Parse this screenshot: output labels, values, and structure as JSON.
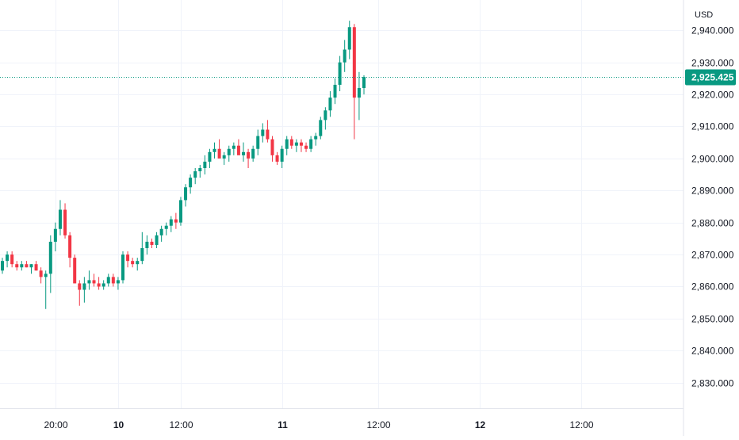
{
  "chart_data": {
    "type": "candlestick",
    "currency": "USD",
    "colors": {
      "up": "#089981",
      "down": "#f23645",
      "grid": "#f0f3fa",
      "last_price": "#089981"
    },
    "ylim": [
      2822,
      2947
    ],
    "y_ticks": [
      {
        "value": 2940,
        "label": "2,940.000"
      },
      {
        "value": 2930,
        "label": "2,930.000"
      },
      {
        "value": 2920,
        "label": "2,920.000"
      },
      {
        "value": 2910,
        "label": "2,910.000"
      },
      {
        "value": 2900,
        "label": "2,900.000"
      },
      {
        "value": 2890,
        "label": "2,890.000"
      },
      {
        "value": 2880,
        "label": "2,880.000"
      },
      {
        "value": 2870,
        "label": "2,870.000"
      },
      {
        "value": 2860,
        "label": "2,860.000"
      },
      {
        "value": 2850,
        "label": "2,850.000"
      },
      {
        "value": 2840,
        "label": "2,840.000"
      },
      {
        "value": 2830,
        "label": "2,830.000"
      }
    ],
    "x_ticks": [
      {
        "bar": 11,
        "label": "20:00",
        "bold": false
      },
      {
        "bar": 24,
        "label": "10",
        "bold": true
      },
      {
        "bar": 37,
        "label": "12:00",
        "bold": false
      },
      {
        "bar": 58,
        "label": "11",
        "bold": true
      },
      {
        "bar": 78,
        "label": "12:00",
        "bold": false
      },
      {
        "bar": 99,
        "label": "12",
        "bold": true
      },
      {
        "bar": 120,
        "label": "12:00",
        "bold": false
      }
    ],
    "last_price": {
      "value": 2925.425,
      "label": "2,925.425"
    },
    "candles": [
      [
        2865,
        2869,
        2864,
        2868
      ],
      [
        2868,
        2871,
        2866,
        2870
      ],
      [
        2870,
        2871,
        2866,
        2867
      ],
      [
        2867,
        2868,
        2865,
        2866
      ],
      [
        2866,
        2868,
        2865,
        2867
      ],
      [
        2867,
        2868,
        2866,
        2866
      ],
      [
        2866,
        2867,
        2864,
        2867
      ],
      [
        2867,
        2868,
        2865,
        2865
      ],
      [
        2865,
        2866,
        2861,
        2863
      ],
      [
        2863,
        2865,
        2853,
        2864
      ],
      [
        2864,
        2876,
        2858,
        2874
      ],
      [
        2874,
        2880,
        2871,
        2878
      ],
      [
        2878,
        2887,
        2876,
        2884
      ],
      [
        2884,
        2886,
        2875,
        2876
      ],
      [
        2876,
        2877,
        2866,
        2869
      ],
      [
        2869,
        2870,
        2861,
        2861
      ],
      [
        2861,
        2862,
        2854,
        2859
      ],
      [
        2859,
        2863,
        2855,
        2861
      ],
      [
        2861,
        2865,
        2859,
        2862
      ],
      [
        2862,
        2864,
        2860,
        2861
      ],
      [
        2861,
        2863,
        2859,
        2860
      ],
      [
        2860,
        2862,
        2859,
        2861
      ],
      [
        2861,
        2864,
        2860,
        2863
      ],
      [
        2863,
        2864,
        2860,
        2861
      ],
      [
        2861,
        2863,
        2859,
        2862
      ],
      [
        2862,
        2871,
        2861,
        2870
      ],
      [
        2870,
        2871,
        2866,
        2868
      ],
      [
        2868,
        2869,
        2866,
        2867
      ],
      [
        2867,
        2869,
        2865,
        2868
      ],
      [
        2868,
        2877,
        2867,
        2872
      ],
      [
        2872,
        2876,
        2870,
        2874
      ],
      [
        2874,
        2875,
        2872,
        2873
      ],
      [
        2873,
        2877,
        2872,
        2876
      ],
      [
        2876,
        2879,
        2874,
        2878
      ],
      [
        2878,
        2880,
        2876,
        2879
      ],
      [
        2879,
        2882,
        2877,
        2881
      ],
      [
        2881,
        2883,
        2878,
        2880
      ],
      [
        2880,
        2888,
        2879,
        2887
      ],
      [
        2887,
        2892,
        2885,
        2891
      ],
      [
        2891,
        2895,
        2889,
        2894
      ],
      [
        2894,
        2897,
        2892,
        2896
      ],
      [
        2896,
        2898,
        2894,
        2897
      ],
      [
        2897,
        2901,
        2895,
        2899
      ],
      [
        2899,
        2903,
        2897,
        2902
      ],
      [
        2902,
        2905,
        2900,
        2903
      ],
      [
        2903,
        2906,
        2901,
        2900
      ],
      [
        2900,
        2902,
        2898,
        2901
      ],
      [
        2901,
        2904,
        2899,
        2903
      ],
      [
        2903,
        2905,
        2901,
        2904
      ],
      [
        2904,
        2906,
        2902,
        2901
      ],
      [
        2901,
        2905,
        2899,
        2902
      ],
      [
        2902,
        2903,
        2897,
        2900
      ],
      [
        2900,
        2904,
        2899,
        2903
      ],
      [
        2903,
        2909,
        2901,
        2907
      ],
      [
        2907,
        2911,
        2905,
        2909
      ],
      [
        2909,
        2912,
        2905,
        2906
      ],
      [
        2906,
        2907,
        2899,
        2901
      ],
      [
        2901,
        2902,
        2898,
        2899
      ],
      [
        2899,
        2904,
        2897,
        2903
      ],
      [
        2903,
        2907,
        2901,
        2906
      ],
      [
        2906,
        2907,
        2903,
        2904
      ],
      [
        2904,
        2906,
        2902,
        2905
      ],
      [
        2905,
        2906,
        2902,
        2904
      ],
      [
        2904,
        2905,
        2902,
        2903
      ],
      [
        2903,
        2907,
        2902,
        2906
      ],
      [
        2906,
        2908,
        2904,
        2907
      ],
      [
        2907,
        2913,
        2906,
        2912
      ],
      [
        2912,
        2916,
        2909,
        2915
      ],
      [
        2915,
        2921,
        2913,
        2919
      ],
      [
        2919,
        2925,
        2917,
        2923
      ],
      [
        2923,
        2932,
        2921,
        2930
      ],
      [
        2930,
        2937,
        2927,
        2934
      ],
      [
        2934,
        2943,
        2931,
        2941
      ],
      [
        2941,
        2942,
        2906,
        2919
      ],
      [
        2919,
        2927,
        2912,
        2922
      ],
      [
        2922,
        2926,
        2920,
        2925.425
      ]
    ]
  }
}
